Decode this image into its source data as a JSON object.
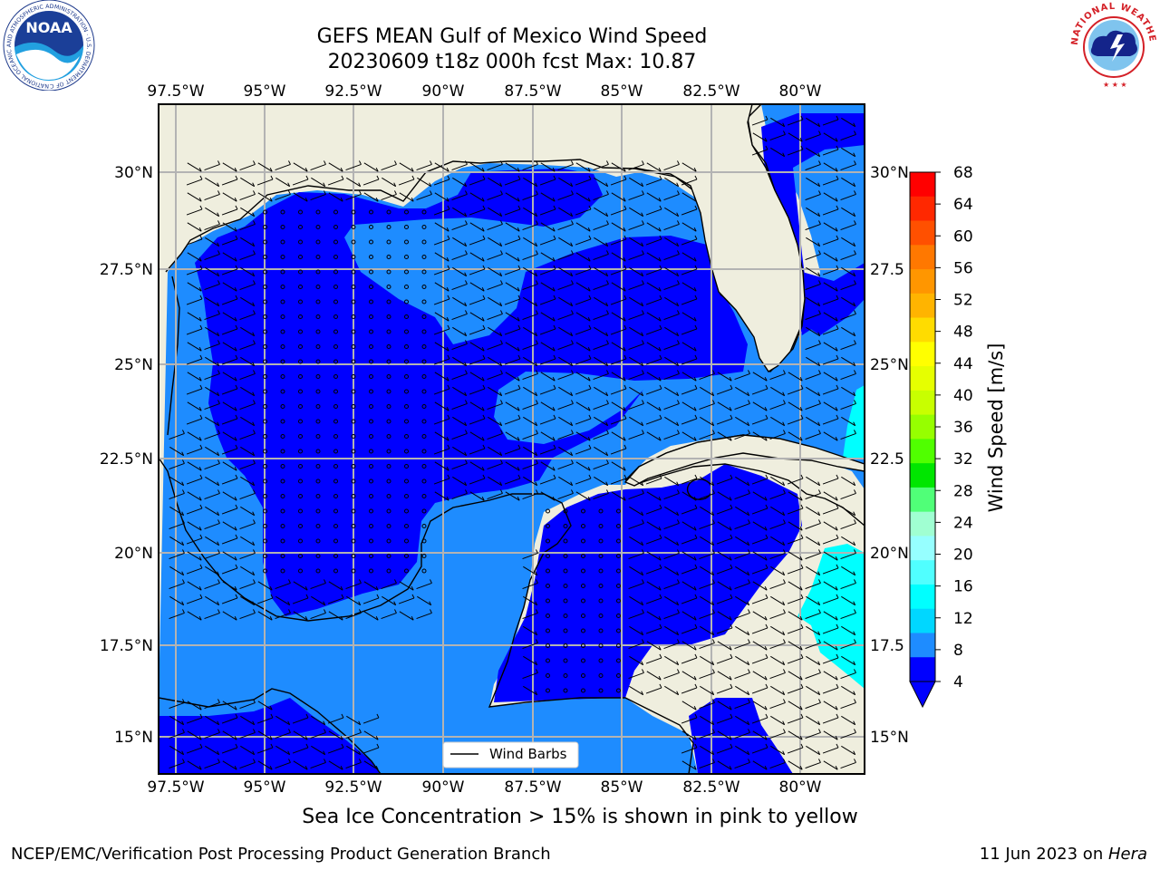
{
  "title": {
    "line1": "GEFS MEAN Gulf of Mexico Wind Speed",
    "line2": "20230609 t18z 000h fcst   Max: 10.87"
  },
  "map": {
    "lon_ticks": [
      "97.5°W",
      "95°W",
      "92.5°W",
      "90°W",
      "87.5°W",
      "85°W",
      "82.5°W",
      "80°W"
    ],
    "lat_ticks": [
      "30°N",
      "27.5°N",
      "25°N",
      "22.5°N",
      "20°N",
      "17.5°N",
      "15°N"
    ],
    "lat_ticks_right": [
      "30°N",
      "27.5",
      "25°N",
      "22.5",
      "20°N",
      "17.5",
      "15°N"
    ],
    "legend_label": "Wind Barbs",
    "colors": {
      "land": "#efeede",
      "ocean_4_8": "#0000ff",
      "ocean_8_12": "#1e8cff",
      "ocean_12_16": "#00ffff",
      "grid": "#b3b3b3"
    }
  },
  "colorbar": {
    "label": "Wind Speed [m/s]",
    "ticks": [
      "68",
      "64",
      "60",
      "56",
      "52",
      "48",
      "44",
      "40",
      "36",
      "32",
      "28",
      "24",
      "20",
      "16",
      "12",
      "8",
      "4"
    ],
    "colors": [
      "#ff0000",
      "#ff2800",
      "#ff5000",
      "#ff7800",
      "#ff9600",
      "#ffb400",
      "#ffdc00",
      "#ffff00",
      "#e6ff00",
      "#c8ff00",
      "#96ff00",
      "#50ff00",
      "#00e600",
      "#50ff78",
      "#a0ffd2",
      "#96ffff",
      "#50ffff",
      "#00ffff",
      "#00d7ff",
      "#1e8cff",
      "#0000ff"
    ]
  },
  "caption": "Sea Ice Concentration > 15% is shown in pink to yellow",
  "footer": {
    "left": "NCEP/EMC/Verification Post Processing Product Generation Branch",
    "right_date": "11 Jun 2023 on ",
    "right_host": "Hera"
  },
  "logos": {
    "noaa_text": "NOAA",
    "noaa_ring": "NATIONAL OCEANIC AND ATMOSPHERIC ADMINISTRATION · U.S. DEPARTMENT OF COMMERCE",
    "nws_ring": "NATIONAL WEATHER SERVICE"
  }
}
